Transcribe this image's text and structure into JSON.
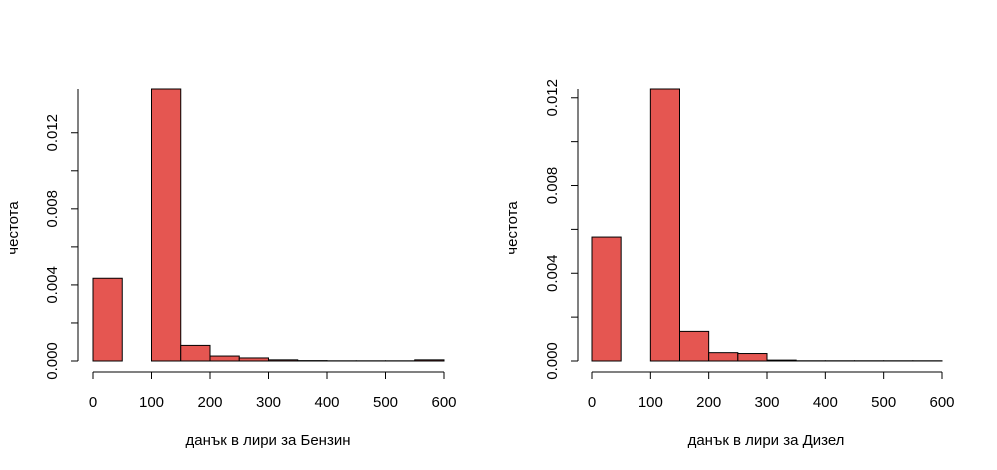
{
  "chart_data": [
    {
      "type": "bar",
      "xlabel": "данък в лири за Бензин",
      "ylabel": "честота",
      "bin_edges": [
        0,
        50,
        100,
        150,
        200,
        250,
        300,
        350,
        400,
        450,
        500,
        550,
        600
      ],
      "values": [
        0.00435,
        0,
        0.0143,
        0.00082,
        0.00026,
        0.00016,
        6e-05,
        2e-05,
        1e-05,
        1e-05,
        1e-05,
        6e-05
      ],
      "xlim": [
        0,
        600
      ],
      "ylim": [
        0,
        0.0143
      ],
      "xticks": [
        "0",
        "100",
        "200",
        "300",
        "400",
        "500",
        "600"
      ],
      "yticks": [
        "0.000",
        "0.004",
        "0.008",
        "0.012"
      ],
      "bar_color": "#e55651",
      "grid": false
    },
    {
      "type": "bar",
      "xlabel": "данък в лири за Дизел",
      "ylabel": "честота",
      "bin_edges": [
        0,
        50,
        100,
        150,
        200,
        250,
        300,
        350,
        400,
        450,
        500,
        550,
        600
      ],
      "values": [
        0.00565,
        0,
        0.0124,
        0.00135,
        0.00038,
        0.00034,
        4e-05,
        1e-05,
        1e-05,
        1e-05,
        1e-05,
        1e-05
      ],
      "xlim": [
        0,
        600
      ],
      "ylim": [
        0,
        0.0124
      ],
      "xticks": [
        "0",
        "100",
        "200",
        "300",
        "400",
        "500",
        "600"
      ],
      "yticks": [
        "0.000",
        "0.004",
        "0.008",
        "0.012"
      ],
      "bar_color": "#e55651",
      "grid": false
    }
  ]
}
